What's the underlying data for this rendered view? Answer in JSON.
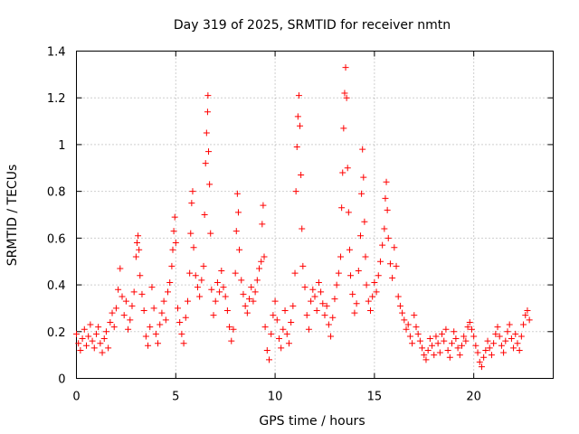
{
  "chart_data": {
    "type": "scatter",
    "title": "Day 319 of 2025, SRMTID for receiver nmtn",
    "xlabel": "GPS time / hours",
    "ylabel": "SRMTID / TECUs",
    "xlim": [
      0,
      24
    ],
    "ylim": [
      0,
      1.4
    ],
    "x_ticks": [
      0,
      5,
      10,
      15,
      20
    ],
    "x_tick_labels": [
      "0",
      "5",
      "10",
      "15",
      "20"
    ],
    "y_ticks": [
      0,
      0.2,
      0.4,
      0.6,
      0.8,
      1,
      1.2,
      1.4
    ],
    "y_tick_labels": [
      "0",
      "0.2",
      "0.4",
      "0.6",
      "0.8",
      "1",
      "1.2",
      "1.4"
    ],
    "grid": true,
    "marker": "+",
    "color": "#ff0000",
    "series": [
      {
        "name": "SRMTID",
        "points": [
          [
            0.0,
            0.19
          ],
          [
            0.1,
            0.15
          ],
          [
            0.2,
            0.12
          ],
          [
            0.3,
            0.17
          ],
          [
            0.4,
            0.21
          ],
          [
            0.5,
            0.14
          ],
          [
            0.6,
            0.18
          ],
          [
            0.7,
            0.23
          ],
          [
            0.8,
            0.16
          ],
          [
            0.9,
            0.13
          ],
          [
            1.0,
            0.19
          ],
          [
            1.1,
            0.22
          ],
          [
            1.2,
            0.15
          ],
          [
            1.3,
            0.11
          ],
          [
            1.4,
            0.17
          ],
          [
            1.5,
            0.2
          ],
          [
            1.6,
            0.13
          ],
          [
            1.7,
            0.24
          ],
          [
            1.8,
            0.28
          ],
          [
            1.9,
            0.22
          ],
          [
            2.0,
            0.3
          ],
          [
            2.1,
            0.38
          ],
          [
            2.2,
            0.47
          ],
          [
            2.3,
            0.35
          ],
          [
            2.4,
            0.27
          ],
          [
            2.5,
            0.33
          ],
          [
            2.6,
            0.21
          ],
          [
            2.7,
            0.25
          ],
          [
            2.8,
            0.31
          ],
          [
            2.9,
            0.37
          ],
          [
            3.0,
            0.52
          ],
          [
            3.05,
            0.58
          ],
          [
            3.1,
            0.61
          ],
          [
            3.15,
            0.55
          ],
          [
            3.2,
            0.44
          ],
          [
            3.3,
            0.36
          ],
          [
            3.4,
            0.29
          ],
          [
            3.5,
            0.18
          ],
          [
            3.6,
            0.14
          ],
          [
            3.7,
            0.22
          ],
          [
            3.8,
            0.39
          ],
          [
            3.9,
            0.3
          ],
          [
            4.0,
            0.19
          ],
          [
            4.1,
            0.15
          ],
          [
            4.2,
            0.23
          ],
          [
            4.3,
            0.28
          ],
          [
            4.4,
            0.33
          ],
          [
            4.5,
            0.25
          ],
          [
            4.6,
            0.37
          ],
          [
            4.7,
            0.41
          ],
          [
            4.8,
            0.48
          ],
          [
            4.85,
            0.55
          ],
          [
            4.9,
            0.63
          ],
          [
            4.95,
            0.69
          ],
          [
            5.0,
            0.58
          ],
          [
            5.1,
            0.3
          ],
          [
            5.2,
            0.24
          ],
          [
            5.3,
            0.19
          ],
          [
            5.4,
            0.15
          ],
          [
            5.5,
            0.26
          ],
          [
            5.6,
            0.33
          ],
          [
            5.7,
            0.45
          ],
          [
            5.75,
            0.62
          ],
          [
            5.8,
            0.75
          ],
          [
            5.85,
            0.8
          ],
          [
            5.9,
            0.56
          ],
          [
            6.0,
            0.44
          ],
          [
            6.1,
            0.39
          ],
          [
            6.2,
            0.35
          ],
          [
            6.3,
            0.42
          ],
          [
            6.4,
            0.48
          ],
          [
            6.45,
            0.7
          ],
          [
            6.5,
            0.92
          ],
          [
            6.55,
            1.05
          ],
          [
            6.6,
            1.14
          ],
          [
            6.62,
            1.21
          ],
          [
            6.65,
            0.97
          ],
          [
            6.7,
            0.83
          ],
          [
            6.75,
            0.62
          ],
          [
            6.8,
            0.38
          ],
          [
            6.9,
            0.27
          ],
          [
            7.0,
            0.33
          ],
          [
            7.1,
            0.41
          ],
          [
            7.2,
            0.37
          ],
          [
            7.3,
            0.46
          ],
          [
            7.4,
            0.39
          ],
          [
            7.5,
            0.35
          ],
          [
            7.6,
            0.29
          ],
          [
            7.7,
            0.22
          ],
          [
            7.8,
            0.16
          ],
          [
            7.9,
            0.21
          ],
          [
            8.0,
            0.45
          ],
          [
            8.05,
            0.63
          ],
          [
            8.1,
            0.79
          ],
          [
            8.15,
            0.71
          ],
          [
            8.2,
            0.55
          ],
          [
            8.3,
            0.42
          ],
          [
            8.4,
            0.36
          ],
          [
            8.5,
            0.31
          ],
          [
            8.6,
            0.28
          ],
          [
            8.7,
            0.34
          ],
          [
            8.8,
            0.39
          ],
          [
            8.9,
            0.33
          ],
          [
            9.0,
            0.37
          ],
          [
            9.1,
            0.42
          ],
          [
            9.2,
            0.47
          ],
          [
            9.3,
            0.5
          ],
          [
            9.35,
            0.66
          ],
          [
            9.4,
            0.74
          ],
          [
            9.45,
            0.52
          ],
          [
            9.5,
            0.22
          ],
          [
            9.6,
            0.12
          ],
          [
            9.7,
            0.08
          ],
          [
            9.8,
            0.19
          ],
          [
            9.9,
            0.27
          ],
          [
            10.0,
            0.33
          ],
          [
            10.1,
            0.25
          ],
          [
            10.2,
            0.17
          ],
          [
            10.3,
            0.13
          ],
          [
            10.4,
            0.21
          ],
          [
            10.5,
            0.29
          ],
          [
            10.6,
            0.19
          ],
          [
            10.7,
            0.15
          ],
          [
            10.8,
            0.24
          ],
          [
            10.9,
            0.31
          ],
          [
            11.0,
            0.45
          ],
          [
            11.05,
            0.8
          ],
          [
            11.1,
            0.99
          ],
          [
            11.15,
            1.12
          ],
          [
            11.2,
            1.21
          ],
          [
            11.25,
            1.08
          ],
          [
            11.3,
            0.87
          ],
          [
            11.35,
            0.64
          ],
          [
            11.4,
            0.48
          ],
          [
            11.5,
            0.39
          ],
          [
            11.6,
            0.27
          ],
          [
            11.7,
            0.21
          ],
          [
            11.8,
            0.33
          ],
          [
            11.9,
            0.38
          ],
          [
            12.0,
            0.35
          ],
          [
            12.1,
            0.29
          ],
          [
            12.2,
            0.41
          ],
          [
            12.3,
            0.37
          ],
          [
            12.4,
            0.32
          ],
          [
            12.5,
            0.27
          ],
          [
            12.6,
            0.31
          ],
          [
            12.7,
            0.23
          ],
          [
            12.8,
            0.18
          ],
          [
            12.9,
            0.26
          ],
          [
            13.0,
            0.34
          ],
          [
            13.1,
            0.4
          ],
          [
            13.2,
            0.45
          ],
          [
            13.3,
            0.52
          ],
          [
            13.35,
            0.73
          ],
          [
            13.4,
            0.88
          ],
          [
            13.45,
            1.07
          ],
          [
            13.5,
            1.22
          ],
          [
            13.55,
            1.33
          ],
          [
            13.6,
            1.2
          ],
          [
            13.65,
            0.9
          ],
          [
            13.7,
            0.71
          ],
          [
            13.75,
            0.55
          ],
          [
            13.8,
            0.44
          ],
          [
            13.9,
            0.36
          ],
          [
            14.0,
            0.28
          ],
          [
            14.1,
            0.32
          ],
          [
            14.2,
            0.46
          ],
          [
            14.3,
            0.61
          ],
          [
            14.35,
            0.79
          ],
          [
            14.4,
            0.98
          ],
          [
            14.45,
            0.86
          ],
          [
            14.5,
            0.67
          ],
          [
            14.55,
            0.52
          ],
          [
            14.6,
            0.4
          ],
          [
            14.7,
            0.33
          ],
          [
            14.8,
            0.29
          ],
          [
            14.9,
            0.35
          ],
          [
            15.0,
            0.41
          ],
          [
            15.1,
            0.37
          ],
          [
            15.2,
            0.44
          ],
          [
            15.3,
            0.5
          ],
          [
            15.4,
            0.57
          ],
          [
            15.5,
            0.64
          ],
          [
            15.55,
            0.77
          ],
          [
            15.6,
            0.84
          ],
          [
            15.65,
            0.72
          ],
          [
            15.7,
            0.6
          ],
          [
            15.8,
            0.49
          ],
          [
            15.9,
            0.43
          ],
          [
            16.0,
            0.56
          ],
          [
            16.1,
            0.48
          ],
          [
            16.2,
            0.35
          ],
          [
            16.3,
            0.31
          ],
          [
            16.4,
            0.28
          ],
          [
            16.5,
            0.25
          ],
          [
            16.6,
            0.21
          ],
          [
            16.7,
            0.23
          ],
          [
            16.8,
            0.18
          ],
          [
            16.9,
            0.15
          ],
          [
            17.0,
            0.27
          ],
          [
            17.1,
            0.22
          ],
          [
            17.2,
            0.19
          ],
          [
            17.3,
            0.16
          ],
          [
            17.4,
            0.13
          ],
          [
            17.5,
            0.1
          ],
          [
            17.6,
            0.08
          ],
          [
            17.7,
            0.12
          ],
          [
            17.8,
            0.17
          ],
          [
            17.9,
            0.14
          ],
          [
            18.0,
            0.1
          ],
          [
            18.1,
            0.18
          ],
          [
            18.2,
            0.15
          ],
          [
            18.3,
            0.11
          ],
          [
            18.4,
            0.19
          ],
          [
            18.5,
            0.16
          ],
          [
            18.6,
            0.21
          ],
          [
            18.7,
            0.12
          ],
          [
            18.8,
            0.09
          ],
          [
            18.9,
            0.15
          ],
          [
            19.0,
            0.2
          ],
          [
            19.1,
            0.17
          ],
          [
            19.2,
            0.13
          ],
          [
            19.3,
            0.1
          ],
          [
            19.4,
            0.14
          ],
          [
            19.5,
            0.18
          ],
          [
            19.6,
            0.16
          ],
          [
            19.7,
            0.22
          ],
          [
            19.8,
            0.24
          ],
          [
            19.9,
            0.21
          ],
          [
            20.0,
            0.18
          ],
          [
            20.1,
            0.14
          ],
          [
            20.2,
            0.11
          ],
          [
            20.3,
            0.07
          ],
          [
            20.4,
            0.05
          ],
          [
            20.5,
            0.09
          ],
          [
            20.6,
            0.12
          ],
          [
            20.7,
            0.16
          ],
          [
            20.8,
            0.13
          ],
          [
            20.9,
            0.1
          ],
          [
            21.0,
            0.15
          ],
          [
            21.1,
            0.19
          ],
          [
            21.2,
            0.22
          ],
          [
            21.3,
            0.18
          ],
          [
            21.4,
            0.14
          ],
          [
            21.5,
            0.11
          ],
          [
            21.6,
            0.16
          ],
          [
            21.7,
            0.2
          ],
          [
            21.8,
            0.23
          ],
          [
            21.9,
            0.17
          ],
          [
            22.0,
            0.13
          ],
          [
            22.1,
            0.19
          ],
          [
            22.2,
            0.15
          ],
          [
            22.3,
            0.12
          ],
          [
            22.4,
            0.18
          ],
          [
            22.5,
            0.23
          ],
          [
            22.6,
            0.27
          ],
          [
            22.7,
            0.29
          ],
          [
            22.8,
            0.25
          ]
        ]
      }
    ]
  }
}
